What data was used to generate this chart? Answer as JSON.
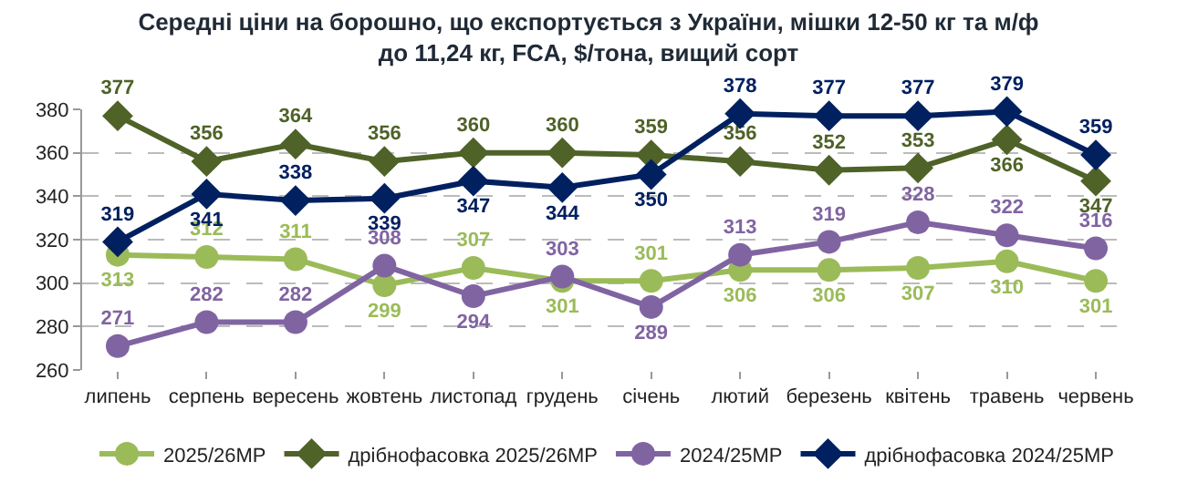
{
  "chart_data": {
    "type": "line",
    "title": "Середні ціни на борошно, що експортується з України, мішки 12-50 кг та м/ф до 11,24 кг, FCA, $/тона, вищий сорт",
    "categories": [
      "липень",
      "серпень",
      "вересень",
      "жовтень",
      "листопад",
      "грудень",
      "січень",
      "лютий",
      "березень",
      "квітень",
      "травень",
      "червень"
    ],
    "series": [
      {
        "name": "2025/26МР",
        "color": "#9bbb59",
        "marker": "circle",
        "values": [
          313,
          312,
          311,
          299,
          307,
          301,
          301,
          306,
          306,
          307,
          310,
          301
        ]
      },
      {
        "name": "дрібнофасовка 2025/26МР",
        "color": "#4f6228",
        "marker": "diamond",
        "values": [
          377,
          356,
          364,
          356,
          360,
          360,
          359,
          356,
          352,
          353,
          366,
          347
        ]
      },
      {
        "name": "2024/25МР",
        "color": "#8064a2",
        "marker": "circle",
        "values": [
          271,
          282,
          282,
          308,
          294,
          303,
          289,
          313,
          319,
          328,
          322,
          316
        ]
      },
      {
        "name": "дрібнофасовка 2024/25МР",
        "color": "#002060",
        "marker": "diamond",
        "values": [
          319,
          341,
          338,
          339,
          347,
          344,
          350,
          378,
          377,
          377,
          379,
          359
        ]
      }
    ],
    "ylim": [
      260,
      380
    ],
    "yticks": [
      260,
      280,
      300,
      320,
      340,
      360,
      380
    ],
    "grid": "y",
    "legend": "bottom",
    "data_labels": true
  }
}
